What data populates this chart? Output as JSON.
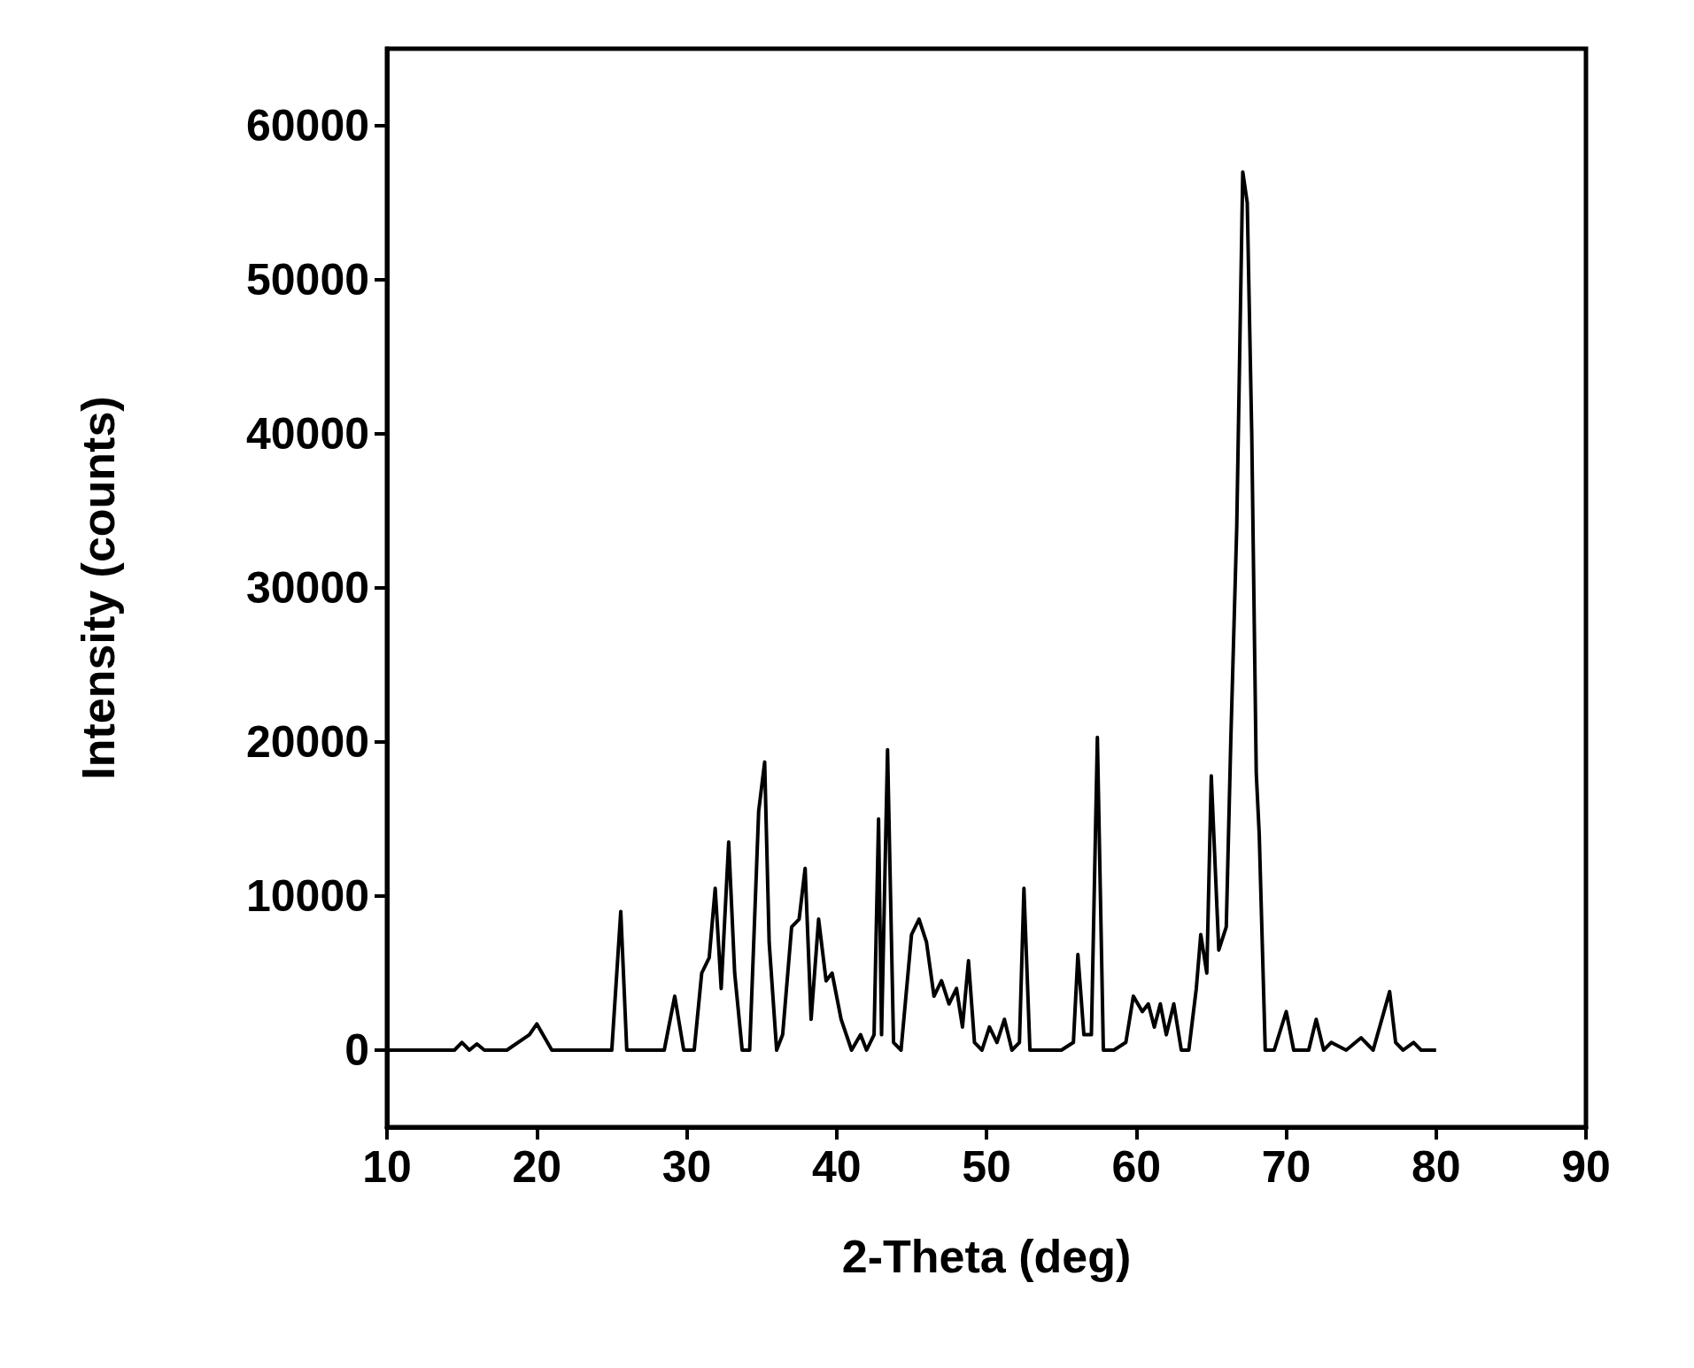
{
  "chart_data": {
    "type": "line",
    "xlabel": "2-Theta (deg)",
    "ylabel": "Intensity (counts)",
    "xlim": [
      10,
      90
    ],
    "xticks": [
      10,
      20,
      30,
      40,
      50,
      60,
      70,
      80,
      90
    ],
    "ylim": [
      -5000,
      65000
    ],
    "yticks": [
      0,
      10000,
      20000,
      30000,
      40000,
      50000,
      60000
    ],
    "grid": false,
    "marker": "none",
    "line_style": "solid",
    "series": [
      {
        "color": "#000000",
        "x": [
          10,
          14.5,
          15,
          15.5,
          16,
          16.5,
          18,
          19.5,
          20,
          21,
          25,
          25.6,
          26,
          28.5,
          29.2,
          29.8,
          30.5,
          31,
          31.5,
          31.9,
          32.3,
          32.8,
          33.2,
          33.7,
          34.2,
          34.8,
          35.2,
          35.5,
          36,
          36.4,
          37,
          37.5,
          37.9,
          38.3,
          38.8,
          39.3,
          39.7,
          40.3,
          41,
          41.6,
          42,
          42.5,
          42.8,
          43,
          43.4,
          43.8,
          44.3,
          45,
          45.5,
          46,
          46.5,
          47,
          47.5,
          48,
          48.4,
          48.8,
          49.2,
          49.7,
          50.2,
          50.7,
          51.2,
          51.7,
          52.2,
          52.5,
          52.9,
          53.5,
          55,
          55.8,
          56.1,
          56.5,
          57,
          57.4,
          57.8,
          58.5,
          59.3,
          59.8,
          60.4,
          60.8,
          61.2,
          61.6,
          62,
          62.5,
          63,
          63.5,
          64,
          64.3,
          64.7,
          65,
          65.5,
          66,
          66.3,
          66.7,
          67.1,
          67.4,
          67.7,
          68,
          68.2,
          68.6,
          69.2,
          70,
          70.5,
          71.5,
          72,
          72.5,
          73,
          74,
          75,
          75.8,
          76.9,
          77.3,
          77.8,
          78.5,
          79,
          80
        ],
        "values": [
          0,
          0,
          500,
          0,
          400,
          0,
          0,
          1000,
          1700,
          0,
          0,
          9000,
          0,
          0,
          3500,
          0,
          0,
          5000,
          6000,
          10500,
          4000,
          13500,
          5000,
          0,
          0,
          15500,
          18700,
          7000,
          0,
          1000,
          8000,
          8500,
          11800,
          2000,
          8500,
          4500,
          5000,
          2000,
          0,
          1000,
          0,
          1000,
          15000,
          1000,
          19500,
          500,
          0,
          7500,
          8500,
          7000,
          3500,
          4500,
          3000,
          4000,
          1500,
          5800,
          500,
          0,
          1500,
          500,
          2000,
          0,
          500,
          10500,
          0,
          0,
          0,
          500,
          6200,
          1000,
          1000,
          20300,
          0,
          0,
          500,
          3500,
          2500,
          3000,
          1500,
          3000,
          1000,
          3000,
          0,
          0,
          4000,
          7500,
          5000,
          17800,
          6500,
          8000,
          20000,
          34000,
          57000,
          55000,
          40000,
          18000,
          14000,
          0,
          0,
          2500,
          0,
          0,
          2000,
          0,
          500,
          0,
          800,
          0,
          3800,
          500,
          0,
          500,
          0,
          0
        ]
      }
    ]
  }
}
